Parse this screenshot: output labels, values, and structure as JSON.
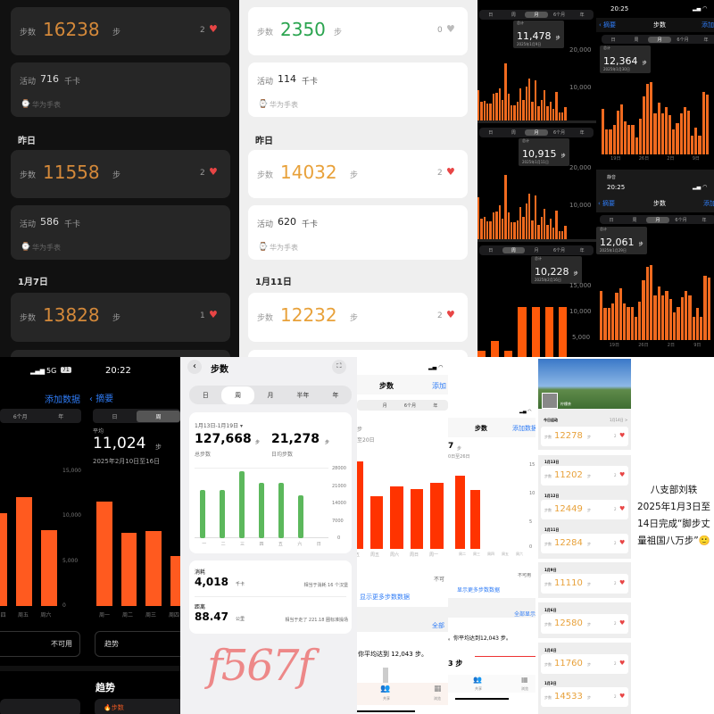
{
  "colors": {
    "orange": "#d4893a",
    "green": "#2aa44f",
    "ios_orange": "#f05a22",
    "heart": "#e84545",
    "huawei_green": "#5cb85c"
  },
  "p1": {
    "today_steps": {
      "label": "步数",
      "value": "16238",
      "unit": "步",
      "likes": "2"
    },
    "today_activity": {
      "label": "活动",
      "value": "716",
      "unit": "千卡",
      "source": "华为手表"
    },
    "yesterday_title": "昨日",
    "y_steps": {
      "label": "步数",
      "value": "11558",
      "unit": "步",
      "likes": "2"
    },
    "y_activity": {
      "label": "活动",
      "value": "586",
      "unit": "千卡",
      "source": "华为手表"
    },
    "date_title": "1月7日",
    "d_steps": {
      "label": "步数",
      "value": "13828",
      "unit": "步",
      "likes": "1"
    }
  },
  "p2": {
    "today_steps": {
      "label": "步数",
      "value": "2350",
      "unit": "步",
      "likes": "0"
    },
    "today_activity": {
      "label": "活动",
      "value": "114",
      "unit": "千卡",
      "source": "华为手表"
    },
    "yesterday_title": "昨日",
    "y_steps": {
      "label": "步数",
      "value": "14032",
      "unit": "步",
      "likes": "2"
    },
    "y_activity": {
      "label": "活动",
      "value": "620",
      "unit": "千卡",
      "source": "华为手表"
    },
    "date_title": "1月11日",
    "d_steps": {
      "label": "步数",
      "value": "12232",
      "unit": "步",
      "likes": "2"
    }
  },
  "ios_tabs": [
    "日",
    "周",
    "月",
    "6个月",
    "年"
  ],
  "p3": {
    "c1": {
      "total_label": "总计",
      "value": "11,478",
      "unit": "步",
      "date": "2025年1月9日",
      "y_ticks": [
        "20,000",
        "10,000"
      ]
    },
    "c2": {
      "total_label": "总计",
      "value": "10,915",
      "unit": "步",
      "date": "2025年1月11日",
      "y_ticks": [
        "20,000",
        "10,000"
      ]
    },
    "c3": {
      "total_label": "总计",
      "value": "10,228",
      "unit": "步",
      "date": "2025年2月16日",
      "y_ticks": [
        "15,000",
        "10,000",
        "5,000"
      ]
    }
  },
  "p4": {
    "time": "20:25",
    "back": "摘要",
    "title": "步数",
    "add": "添加数据",
    "c1": {
      "total_label": "总计",
      "value": "12,364",
      "unit": "步",
      "date": "2025年1月30日",
      "x_ticks": [
        "19日",
        "26日",
        "2日",
        "9日"
      ]
    },
    "mute": "静音",
    "c2": {
      "total_label": "总计",
      "value": "12,061",
      "unit": "步",
      "date": "2025年1月29日",
      "x_ticks": [
        "19日",
        "26日",
        "2日",
        "9日"
      ]
    }
  },
  "p5": {
    "network": "5G",
    "battery": "71",
    "time": "20:22",
    "add": "添加数据",
    "back": "摘要",
    "tabs_left": [
      "6个月",
      "年"
    ],
    "tabs_right": [
      "日",
      "周"
    ],
    "y_ticks": [
      "15,000",
      "10,000",
      "5,000",
      "0"
    ],
    "left_x": [
      "四",
      "周五",
      "周六"
    ],
    "avg_label": "平均",
    "avg_value": "11,024",
    "unit": "步",
    "date": "2025年2月10日至16日",
    "right_x": [
      "周一",
      "周二",
      "周三",
      "周四"
    ],
    "unavailable": "不可用",
    "trend": "趋势",
    "trend_heading": "趋势",
    "steps_tag": "步数"
  },
  "p6": {
    "title": "步数",
    "tabs": [
      "日",
      "周",
      "月",
      "半年",
      "年"
    ],
    "range": "1月13日-1月19日 ▾",
    "total": "127,668",
    "total_unit": "步",
    "total_label": "总步数",
    "avg": "21,278",
    "avg_unit": "步",
    "avg_label": "日均步数",
    "y_ticks": [
      "28000",
      "21000",
      "14000",
      "7000",
      "0"
    ],
    "x": [
      "一",
      "二",
      "三",
      "四",
      "五",
      "六",
      "日"
    ],
    "cal_label": "消耗",
    "cal_value": "4,018",
    "cal_unit": "千卡",
    "cal_note": "相当于消耗 16 个汉堡",
    "dist_label": "距离",
    "dist_value": "88.47",
    "dist_unit": "公里",
    "dist_note": "相当于走了 221.18 圈标准操场",
    "handwriting": "f567f"
  },
  "p7": {
    "title": "步数",
    "add": "添加",
    "tabs": [
      "月",
      "6个月",
      "年"
    ],
    "unit": "步",
    "range": "至20日",
    "x": [
      "五",
      "周五",
      "周六",
      "周日",
      "周一"
    ],
    "unavail": "不可",
    "more": "显示更多步数数据",
    "all": "全部",
    "avg_text": "你平均达到 12,043 步。",
    "share": "共享",
    "browse": "浏览",
    "r_title": "步数",
    "r_add": "添加数据",
    "r_value": "7",
    "r_unit": "步",
    "r_range": "0日至26日",
    "r_x": [
      "周二",
      "周三",
      "周四",
      "周五",
      "周六"
    ],
    "r_y": [
      "15",
      "10",
      "5",
      "0"
    ],
    "r_unavail": "不可用",
    "r_more": "显示更多步数数据",
    "r_all": "全部显示",
    "r_avg_text": "。你平均达到12,043 步。",
    "r_small": "3 步"
  },
  "p8": {
    "name": "柠檬茶",
    "today_label": "今日运动",
    "today_date": "1月14日 >",
    "rows": [
      {
        "date": "",
        "value": "12278"
      },
      {
        "date": "1月13日",
        "value": "11202"
      },
      {
        "date": "1月12日",
        "value": "12449"
      },
      {
        "date": "1月11日",
        "value": "12284"
      },
      {
        "date": "1月9日",
        "value": "11110"
      },
      {
        "date": "1月6日",
        "value": "12580"
      },
      {
        "date": "1月4日",
        "value": "11760"
      },
      {
        "date": "1月3日",
        "value": "14533"
      }
    ],
    "row_label": "步数",
    "row_unit": "步",
    "likes": "2",
    "caption": [
      "八支部刘轶",
      "2025年1月3日至",
      "14日完成“脚步丈",
      "量祖国八万步”🙂"
    ]
  },
  "charts": {
    "m1": [
      8000,
      5000,
      5200,
      4500,
      4500,
      7000,
      7200,
      8500,
      5500,
      15000,
      7000,
      4000,
      4000,
      5000,
      8500,
      5500,
      9000,
      11000,
      5000,
      10500,
      3800,
      5500,
      8000,
      3800,
      5000,
      3000,
      7500,
      2200,
      2200,
      3500
    ],
    "m2": [
      11000,
      5500,
      5800,
      4800,
      4800,
      7000,
      7400,
      9000,
      5500,
      17000,
      7000,
      4500,
      4500,
      5000,
      8500,
      6000,
      9500,
      12000,
      5000,
      11500,
      3800,
      6000,
      8000,
      3800,
      5500,
      3000,
      7500,
      2200,
      2200,
      3500
    ],
    "w3": [
      2000,
      4000,
      2000,
      10500,
      10500,
      10500,
      10500
    ],
    "r1": [
      11000,
      6000,
      6000,
      7000,
      10500,
      12000,
      8000,
      7000,
      7000,
      4000,
      8500,
      14000,
      17000,
      17500,
      10000,
      12500,
      10000,
      11500,
      9500,
      6000,
      7500,
      10000,
      11500,
      10500,
      4500,
      6500,
      4500,
      15000,
      14500
    ],
    "r2": [
      11500,
      7500,
      7500,
      8500,
      11000,
      12000,
      8500,
      7800,
      7800,
      5500,
      9000,
      14000,
      17000,
      17500,
      10500,
      12500,
      10500,
      11500,
      9500,
      6500,
      7800,
      10000,
      11500,
      10500,
      5500,
      7500,
      5500,
      15000,
      14500
    ],
    "b1": [
      10300,
      12000,
      8400
    ],
    "b2": [
      11500,
      8100,
      8300,
      5500
    ],
    "hw": [
      19000,
      19000,
      26500,
      22000,
      22000,
      17000,
      0
    ],
    "c7": [
      14500,
      8700,
      10300,
      9900,
      11000
    ],
    "c7r": [
      13000,
      10400,
      0,
      0,
      0
    ]
  }
}
